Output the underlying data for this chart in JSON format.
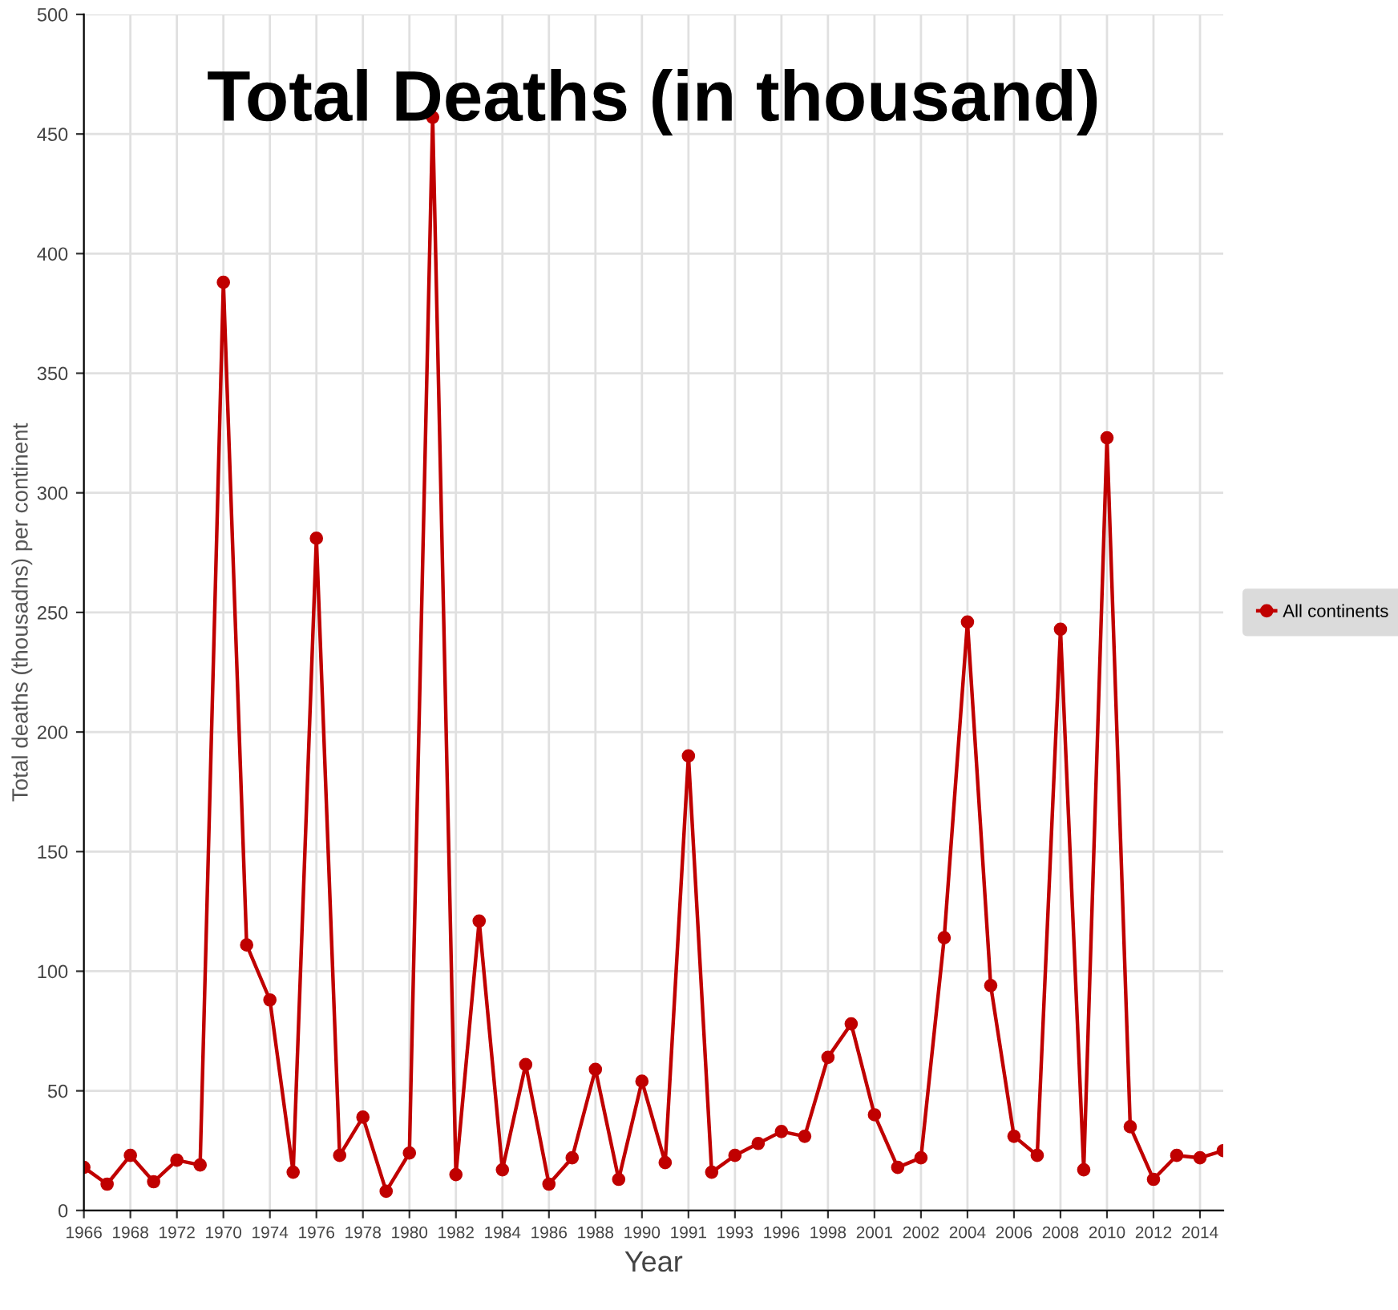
{
  "chart_data": {
    "type": "line",
    "title": "Total Deaths (in thousand)",
    "xlabel": "Year",
    "ylabel": "Total deaths (thousadns) per continent",
    "categories": [
      "1966",
      null,
      "1968",
      null,
      "1972",
      null,
      "1970",
      null,
      "1974",
      null,
      "1976",
      null,
      "1978",
      null,
      "1980",
      null,
      "1982",
      null,
      "1984",
      null,
      "1986",
      null,
      "1988",
      null,
      "1990",
      null,
      "1991",
      null,
      "1993",
      null,
      "1996",
      null,
      "1998",
      null,
      "2001",
      null,
      "2002",
      null,
      "2004",
      null,
      "2006",
      null,
      "2008",
      null,
      "2010",
      null,
      "2012",
      null,
      "2014",
      null
    ],
    "series": [
      {
        "name": "All continents",
        "color": "#c00000",
        "values": [
          18,
          11,
          23,
          12,
          21,
          19,
          388,
          111,
          88,
          16,
          281,
          23,
          39,
          8,
          24,
          457,
          15,
          121,
          17,
          61,
          11,
          22,
          59,
          13,
          54,
          20,
          190,
          16,
          23,
          28,
          33,
          31,
          64,
          78,
          40,
          18,
          22,
          114,
          246,
          94,
          31,
          23,
          243,
          17,
          323,
          35,
          13,
          23,
          22,
          25
        ]
      }
    ],
    "ylim": [
      0,
      500
    ],
    "yticks": [
      0,
      50,
      100,
      150,
      200,
      250,
      300,
      350,
      400,
      450,
      500
    ],
    "grid": true,
    "legend": "right",
    "marker": "circle",
    "line_style": "solid"
  }
}
